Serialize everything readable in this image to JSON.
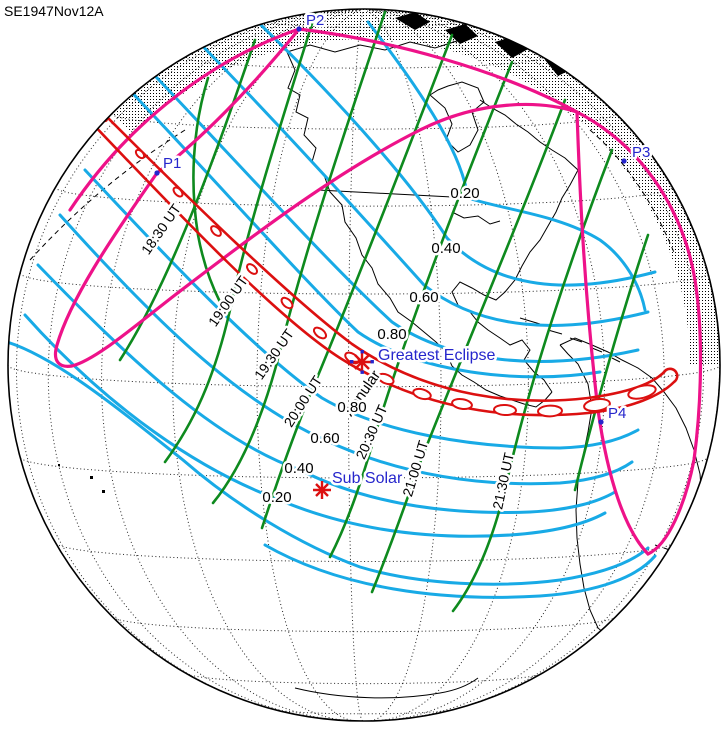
{
  "title": "SE1947Nov12A",
  "colors": {
    "path_red": "#DC1010",
    "penumbral_magenta": "#EE1289",
    "time_green": "#0E8A1E",
    "magnitude_cyan": "#18AAE6",
    "label_blue": "#2626CC",
    "text_black": "#000000",
    "background": "#FFFFFF"
  },
  "contact_points": [
    {
      "id": "P1"
    },
    {
      "id": "P2"
    },
    {
      "id": "P3"
    },
    {
      "id": "P4"
    }
  ],
  "markers": {
    "greatest_eclipse": "Greatest Eclipse",
    "sub_solar": "Sub Solar"
  },
  "central_path_label": "Annular",
  "time_labels": [
    {
      "text": "18:30 UT"
    },
    {
      "text": "19:00 UT"
    },
    {
      "text": "19:30 UT"
    },
    {
      "text": "20:00 UT"
    },
    {
      "text": "20:30 UT"
    },
    {
      "text": "21:00 UT"
    },
    {
      "text": "21:30 UT"
    }
  ],
  "magnitude_labels_ne": [
    {
      "text": "0.20"
    },
    {
      "text": "0.40"
    },
    {
      "text": "0.60"
    },
    {
      "text": "0.80"
    }
  ],
  "magnitude_labels_sw": [
    {
      "text": "0.80"
    },
    {
      "text": "0.60"
    },
    {
      "text": "0.40"
    },
    {
      "text": "0.20"
    }
  ]
}
